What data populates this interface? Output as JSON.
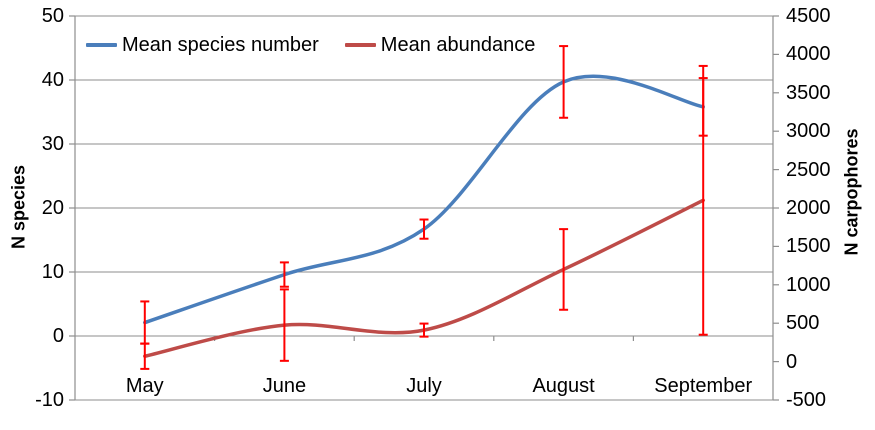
{
  "chart_data": {
    "type": "line",
    "smooth": true,
    "title": "",
    "categories": [
      "May",
      "June",
      "July",
      "August",
      "September"
    ],
    "series": [
      {
        "name": "Mean species number",
        "axis": "left",
        "color": "#4A7EBB",
        "values": [
          2.1,
          9.6,
          16.7,
          39.7,
          35.8
        ],
        "error": [
          3.3,
          1.9,
          1.5,
          5.6,
          4.5
        ]
      },
      {
        "name": "Mean abundance",
        "axis": "right",
        "color": "#BE4B48",
        "values": [
          70,
          475,
          410,
          1200,
          2100
        ],
        "error": [
          165,
          465,
          85,
          525,
          1750
        ]
      }
    ],
    "left_axis": {
      "title": "N species",
      "min": -10,
      "max": 50,
      "step": 10,
      "tick_labels": [
        "50",
        "40",
        "30",
        "20",
        "10",
        "0",
        "-10"
      ]
    },
    "right_axis": {
      "title": "N carpophores",
      "min": -500,
      "max": 4500,
      "step": 500,
      "tick_labels": [
        "4500",
        "4000",
        "3500",
        "3000",
        "2500",
        "2000",
        "1500",
        "1000",
        "500",
        "0",
        "-500"
      ]
    },
    "error_bar_color": "#FF0000",
    "gridline_color": "#8E8E8E",
    "axis_line_color": "#8E8E8E",
    "grid": "horizontal",
    "legend_position": "top-left"
  }
}
